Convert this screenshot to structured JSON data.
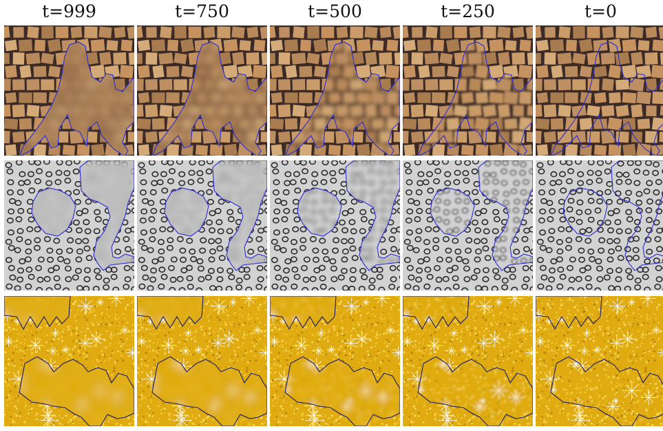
{
  "columns": [
    {
      "label": "t=999",
      "blur": 1.0
    },
    {
      "label": "t=750",
      "blur": 0.78
    },
    {
      "label": "t=500",
      "blur": 0.5
    },
    {
      "label": "t=250",
      "blur": 0.24
    },
    {
      "label": "t=0",
      "blur": 0.0
    }
  ],
  "rows": [
    {
      "texture": "stone-blocks",
      "mask_color": "#2a2ad8",
      "base_color": "#b3875b"
    },
    {
      "texture": "circle-dots",
      "mask_color": "#2a2ad8",
      "base_color": "#c9c9c9"
    },
    {
      "texture": "gold-glitter",
      "mask_color": "#1a1a6a",
      "base_color": "#e0ae12"
    }
  ]
}
